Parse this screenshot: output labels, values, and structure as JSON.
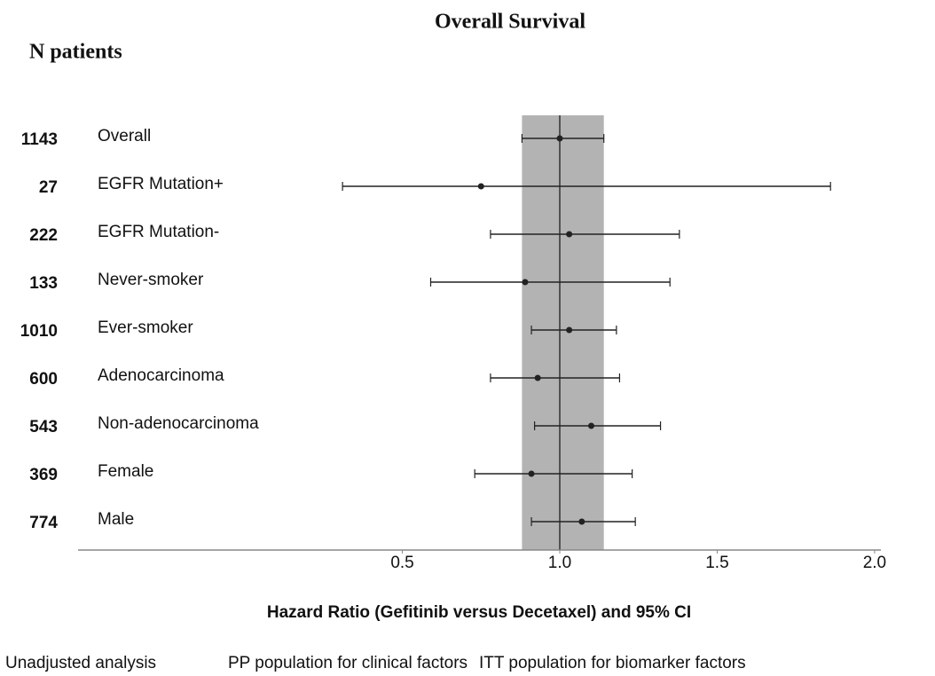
{
  "chart_data": {
    "type": "forest",
    "title": "Overall Survival",
    "n_label": "N patients",
    "x_label": "Hazard Ratio (Gefitinib versus Decetaxel) and 95% CI",
    "legend": [
      "Unadjusted analysis",
      "PP population for clinical factors",
      "ITT population for biomarker factors"
    ],
    "categories": [
      "Overall",
      "EGFR Mutation+",
      "EGFR Mutation-",
      "Never-smoker",
      "Ever-smoker",
      "Adenocarcinoma",
      "Non-adenocarcinoma",
      "Female",
      "Male"
    ],
    "n": [
      1143,
      27,
      222,
      133,
      1010,
      600,
      543,
      369,
      774
    ],
    "values": [
      1.0,
      0.75,
      1.03,
      0.89,
      1.03,
      0.93,
      1.1,
      0.91,
      1.07
    ],
    "lower": [
      0.88,
      0.31,
      0.78,
      0.59,
      0.91,
      0.78,
      0.92,
      0.73,
      0.91
    ],
    "upper": [
      1.14,
      1.86,
      1.38,
      1.35,
      1.18,
      1.19,
      1.32,
      1.23,
      1.24
    ],
    "reference_line": 1,
    "reference_band": [
      0.88,
      1.14
    ],
    "band_color": "#b3b3b3",
    "color": "#222222",
    "xlim": [
      -0.53,
      2.02
    ],
    "xticks": [
      0.5,
      {
        "value": 1,
        "label": "1.0"
      },
      1.5,
      {
        "value": 2,
        "label": "2.0"
      }
    ]
  }
}
